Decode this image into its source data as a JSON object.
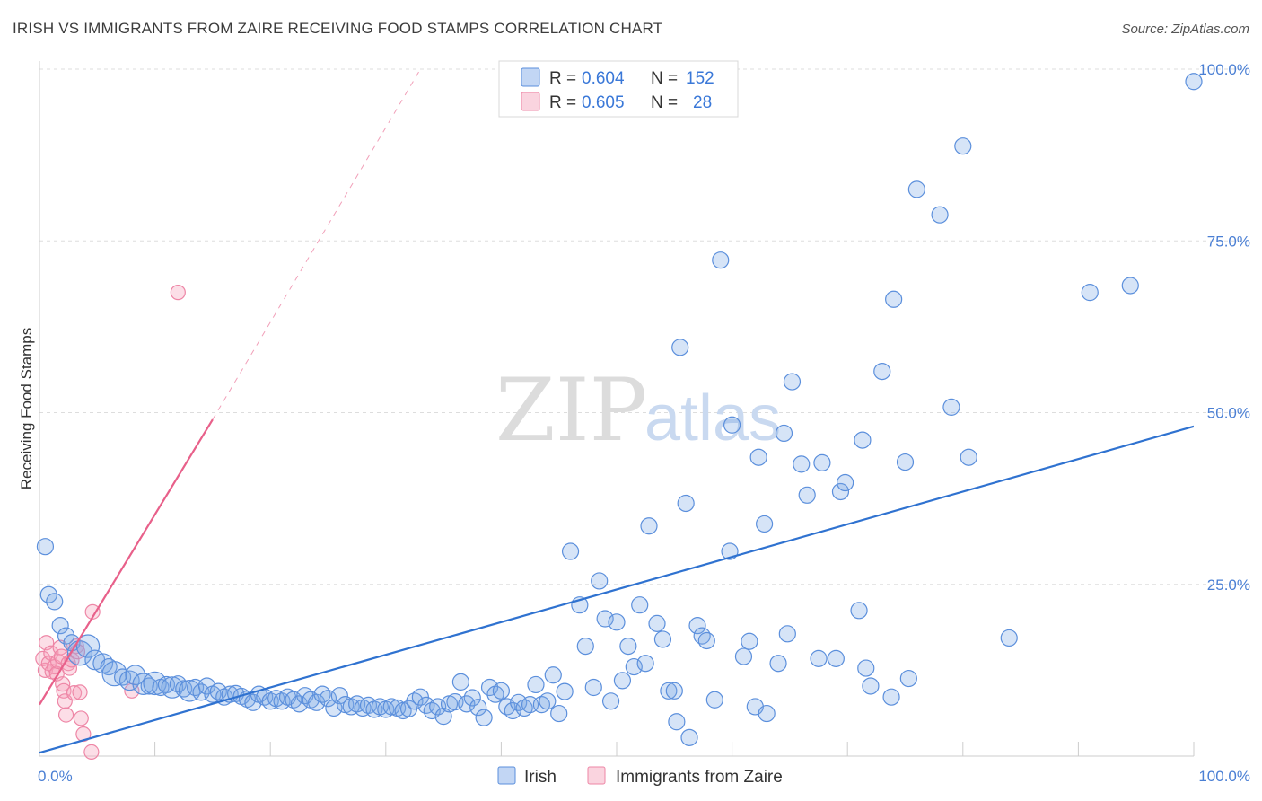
{
  "header": {
    "title": "IRISH VS IMMIGRANTS FROM ZAIRE RECEIVING FOOD STAMPS CORRELATION CHART",
    "source": "Source: ZipAtlas.com"
  },
  "watermark": {
    "part1": "ZIP",
    "part2": "atlas"
  },
  "legend_top": [
    {
      "r_label": "R = ",
      "r_value": "0.604",
      "n_label": "N = ",
      "n_value": "152"
    },
    {
      "r_label": "R = ",
      "r_value": "0.605",
      "n_label": "N = ",
      "n_value": "28"
    }
  ],
  "legend_bottom": [
    {
      "label": "Irish"
    },
    {
      "label": "Immigrants from Zaire"
    }
  ],
  "colors": {
    "irish_fill": "rgba(120,165,230,0.30)",
    "irish_stroke": "#5b8fdc",
    "irish_line": "#2f72d0",
    "zaire_fill": "rgba(245,160,185,0.35)",
    "zaire_stroke": "#ee86a6",
    "zaire_line": "#e8608a",
    "grid": "#dddddd"
  },
  "chart_data": {
    "type": "scatter",
    "title": "IRISH VS IMMIGRANTS FROM ZAIRE RECEIVING FOOD STAMPS CORRELATION CHART",
    "xlabel": "",
    "ylabel": "Receiving Food Stamps",
    "xlim": [
      0,
      100
    ],
    "ylim": [
      0,
      100
    ],
    "x_tick_labels": [
      {
        "value": 0,
        "label": "0.0%"
      },
      {
        "value": 100,
        "label": "100.0%"
      }
    ],
    "y_tick_labels": [
      {
        "value": 25,
        "label": "25.0%"
      },
      {
        "value": 50,
        "label": "50.0%"
      },
      {
        "value": 75,
        "label": "75.0%"
      },
      {
        "value": 100,
        "label": "100.0%"
      }
    ],
    "series": [
      {
        "name": "Irish",
        "r": 0.604,
        "n": 152,
        "trend": {
          "x0": 0,
          "y0": 0.5,
          "x1": 100,
          "y1": 48
        },
        "points": [
          [
            0.5,
            30.5,
            1
          ],
          [
            0.8,
            23.5,
            1
          ],
          [
            1.3,
            22.5,
            1
          ],
          [
            1.8,
            19,
            1
          ],
          [
            2.3,
            17.5,
            1
          ],
          [
            2.8,
            16.5,
            1
          ],
          [
            3.5,
            15,
            1.5
          ],
          [
            4.2,
            16,
            1.4
          ],
          [
            4.8,
            14,
            1.2
          ],
          [
            5.5,
            13.5,
            1.2
          ],
          [
            6,
            13,
            1
          ],
          [
            6.5,
            12,
            1.5
          ],
          [
            7.2,
            11.5,
            1
          ],
          [
            7.8,
            11,
            1.2
          ],
          [
            8.3,
            11.8,
            1.2
          ],
          [
            9,
            10.5,
            1.3
          ],
          [
            9.5,
            10.2,
            1
          ],
          [
            10,
            10.6,
            1.4
          ],
          [
            10.5,
            10,
            1
          ],
          [
            11,
            10.4,
            1
          ],
          [
            11.5,
            10,
            1.3
          ],
          [
            12,
            10.5,
            1
          ],
          [
            12.5,
            9.8,
            1
          ],
          [
            13,
            9.5,
            1.3
          ],
          [
            13.5,
            10,
            1
          ],
          [
            14,
            9.3,
            1
          ],
          [
            14.5,
            10.2,
            1
          ],
          [
            15,
            9,
            1
          ],
          [
            15.5,
            9.4,
            1
          ],
          [
            16,
            8.6,
            1
          ],
          [
            16.5,
            9,
            1
          ],
          [
            17,
            9.1,
            1
          ],
          [
            17.5,
            8.7,
            1
          ],
          [
            18,
            8.3,
            1
          ],
          [
            18.5,
            7.8,
            1
          ],
          [
            19,
            9,
            1
          ],
          [
            19.5,
            8.6,
            1
          ],
          [
            20,
            8,
            1
          ],
          [
            20.5,
            8.4,
            1
          ],
          [
            21,
            8,
            1
          ],
          [
            21.5,
            8.6,
            1
          ],
          [
            22,
            8.2,
            1
          ],
          [
            22.5,
            7.6,
            1
          ],
          [
            23,
            8.8,
            1
          ],
          [
            23.5,
            8.2,
            1
          ],
          [
            24,
            7.8,
            1
          ],
          [
            24.5,
            9,
            1
          ],
          [
            25,
            8.4,
            1
          ],
          [
            25.5,
            7,
            1
          ],
          [
            26,
            8.8,
            1
          ],
          [
            26.5,
            7.5,
            1
          ],
          [
            27,
            7.2,
            1
          ],
          [
            27.5,
            7.6,
            1
          ],
          [
            28,
            7,
            1
          ],
          [
            28.5,
            7.4,
            1
          ],
          [
            29,
            6.8,
            1
          ],
          [
            29.5,
            7.2,
            1
          ],
          [
            30,
            6.8,
            1
          ],
          [
            30.5,
            7.2,
            1
          ],
          [
            31,
            7,
            1
          ],
          [
            31.5,
            6.6,
            1
          ],
          [
            32,
            6.9,
            1
          ],
          [
            32.5,
            8,
            1
          ],
          [
            33,
            8.6,
            1
          ],
          [
            33.5,
            7.4,
            1
          ],
          [
            34,
            6.6,
            1
          ],
          [
            34.5,
            7.2,
            1
          ],
          [
            35,
            5.8,
            1
          ],
          [
            35.5,
            7.6,
            1
          ],
          [
            36,
            7.9,
            1
          ],
          [
            36.5,
            10.8,
            1
          ],
          [
            37,
            7.6,
            1
          ],
          [
            37.5,
            8.5,
            1
          ],
          [
            38,
            7.1,
            1
          ],
          [
            38.5,
            5.6,
            1
          ],
          [
            39,
            10,
            1
          ],
          [
            39.5,
            9,
            1
          ],
          [
            40,
            9.5,
            1
          ],
          [
            40.5,
            7.2,
            1
          ],
          [
            41,
            6.6,
            1
          ],
          [
            41.5,
            7.8,
            1
          ],
          [
            42,
            7,
            1
          ],
          [
            42.5,
            7.5,
            1
          ],
          [
            43,
            10.4,
            1
          ],
          [
            43.5,
            7.5,
            1
          ],
          [
            44,
            8,
            1
          ],
          [
            44.5,
            11.8,
            1
          ],
          [
            45,
            6.2,
            1
          ],
          [
            45.5,
            9.4,
            1
          ],
          [
            46,
            29.8,
            1
          ],
          [
            46.8,
            22,
            1
          ],
          [
            47.3,
            16,
            1
          ],
          [
            48,
            10,
            1
          ],
          [
            48.5,
            25.5,
            1
          ],
          [
            49,
            20,
            1
          ],
          [
            49.5,
            8,
            1
          ],
          [
            50,
            19.5,
            1
          ],
          [
            50.5,
            11,
            1
          ],
          [
            51,
            16,
            1
          ],
          [
            51.5,
            13,
            1
          ],
          [
            52,
            22,
            1
          ],
          [
            52.5,
            13.5,
            1
          ],
          [
            52.8,
            33.5,
            1
          ],
          [
            53.5,
            19.3,
            1
          ],
          [
            54,
            17,
            1
          ],
          [
            54.5,
            9.5,
            1
          ],
          [
            55,
            9.5,
            1
          ],
          [
            55.2,
            5,
            1
          ],
          [
            55.5,
            59.5,
            1
          ],
          [
            56,
            36.8,
            1
          ],
          [
            56.3,
            2.7,
            1
          ],
          [
            57,
            19,
            1
          ],
          [
            57.4,
            17.5,
            1
          ],
          [
            57.8,
            16.8,
            1
          ],
          [
            58.5,
            8.2,
            1
          ],
          [
            59,
            72.2,
            1
          ],
          [
            59.8,
            29.8,
            1
          ],
          [
            60,
            48.2,
            1
          ],
          [
            61,
            14.5,
            1
          ],
          [
            61.5,
            16.7,
            1
          ],
          [
            62,
            7.2,
            1
          ],
          [
            62.3,
            43.5,
            1
          ],
          [
            62.8,
            33.8,
            1
          ],
          [
            63,
            6.2,
            1
          ],
          [
            64,
            13.5,
            1
          ],
          [
            64.5,
            47,
            1
          ],
          [
            64.8,
            17.8,
            1
          ],
          [
            65.2,
            54.5,
            1
          ],
          [
            66,
            42.5,
            1
          ],
          [
            66.5,
            38,
            1
          ],
          [
            67.5,
            14.2,
            1
          ],
          [
            67.8,
            42.7,
            1
          ],
          [
            69,
            14.2,
            1
          ],
          [
            69.4,
            38.5,
            1
          ],
          [
            69.8,
            39.8,
            1
          ],
          [
            71,
            21.2,
            1
          ],
          [
            71.3,
            46,
            1
          ],
          [
            71.6,
            12.8,
            1
          ],
          [
            72,
            10.2,
            1
          ],
          [
            73,
            56,
            1
          ],
          [
            73.8,
            8.6,
            1
          ],
          [
            74,
            66.5,
            1
          ],
          [
            75,
            42.8,
            1
          ],
          [
            75.3,
            11.3,
            1
          ],
          [
            76,
            82.5,
            1
          ],
          [
            78,
            78.8,
            1
          ],
          [
            79,
            50.8,
            1
          ],
          [
            80,
            88.8,
            1
          ],
          [
            80.5,
            43.5,
            1
          ],
          [
            84,
            17.2,
            1
          ],
          [
            91,
            67.5,
            1
          ],
          [
            94.5,
            68.5,
            1
          ],
          [
            100,
            98.2,
            1
          ]
        ]
      },
      {
        "name": "Immigrants from Zaire",
        "r": 0.605,
        "n": 28,
        "trend": {
          "x0": 0,
          "y0": 7.5,
          "x1": 15,
          "y1": 49
        },
        "trend_extension": {
          "x0": 15,
          "y0": 49,
          "x1": 33,
          "y1": 100
        },
        "points": [
          [
            0.3,
            14.2,
            1
          ],
          [
            0.5,
            12.5,
            1
          ],
          [
            0.6,
            16.5,
            1
          ],
          [
            0.8,
            13.5,
            1
          ],
          [
            1,
            15,
            1
          ],
          [
            1.1,
            12.3,
            1
          ],
          [
            1.3,
            13,
            1
          ],
          [
            1.5,
            12,
            1
          ],
          [
            1.6,
            13.8,
            1
          ],
          [
            1.8,
            15.8,
            1
          ],
          [
            1.9,
            14.5,
            1
          ],
          [
            2,
            10.5,
            1
          ],
          [
            2.1,
            9.5,
            1
          ],
          [
            2.2,
            8,
            1
          ],
          [
            2.3,
            6,
            1
          ],
          [
            2.5,
            13.5,
            1
          ],
          [
            2.6,
            12.8,
            1
          ],
          [
            2.8,
            14,
            1
          ],
          [
            3,
            9.2,
            1
          ],
          [
            3.2,
            16,
            1
          ],
          [
            3.3,
            15.2,
            1
          ],
          [
            3.5,
            9.3,
            1
          ],
          [
            3.6,
            5.5,
            1
          ],
          [
            3.8,
            3.2,
            1
          ],
          [
            4.5,
            0.6,
            1
          ],
          [
            4.6,
            21,
            1
          ],
          [
            8,
            9.5,
            1
          ],
          [
            12,
            67.5,
            1
          ]
        ]
      }
    ]
  }
}
